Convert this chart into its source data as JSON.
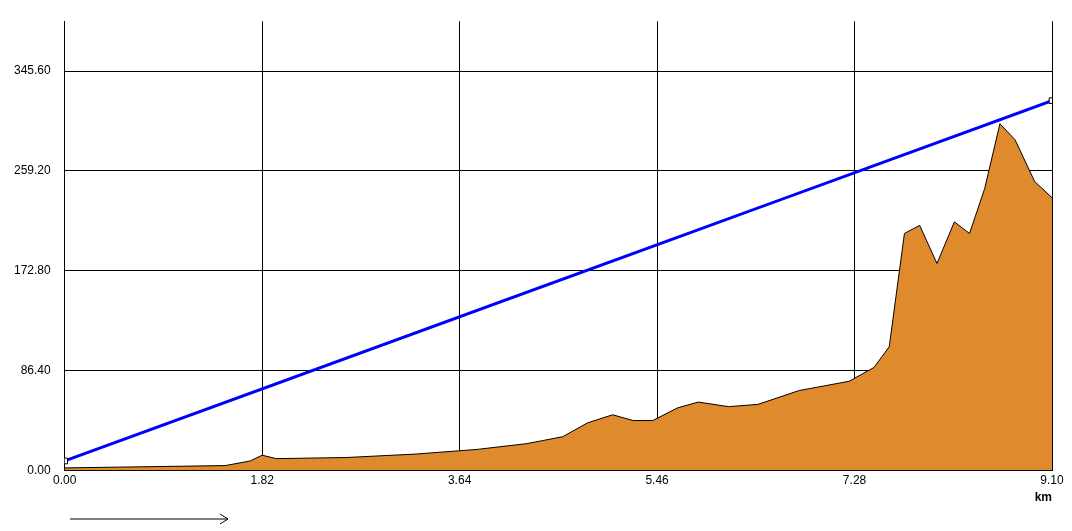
{
  "chart_data": {
    "type": "area",
    "xlabel": "km",
    "xlim": [
      0,
      9.1
    ],
    "xticks": [
      {
        "value": 0,
        "label": "0.00"
      },
      {
        "value": 1.82,
        "label": "1.82"
      },
      {
        "value": 3.64,
        "label": "3.64"
      },
      {
        "value": 5.46,
        "label": "5.46"
      },
      {
        "value": 7.28,
        "label": "7.28"
      },
      {
        "value": 9.1,
        "label": "9.10"
      }
    ],
    "ylim": [
      0,
      388.8
    ],
    "yticks": [
      {
        "value": 0,
        "label": "0.00"
      },
      {
        "value": 86.4,
        "label": "86.40"
      },
      {
        "value": 172.8,
        "label": "172.80"
      },
      {
        "value": 259.2,
        "label": "259.20"
      },
      {
        "value": 345.6,
        "label": "345.60"
      }
    ],
    "grid": true,
    "legend": false,
    "series": [
      {
        "color": "#e08a2e",
        "marker": "none",
        "x": [
          0,
          0.74,
          1.48,
          1.71,
          1.82,
          1.95,
          2.6,
          3.24,
          3.8,
          4.26,
          4.59,
          4.82,
          5.05,
          5.24,
          5.42,
          5.65,
          5.84,
          6.12,
          6.39,
          6.77,
          7.23,
          7.46,
          7.6,
          7.74,
          7.88,
          8.04,
          8.2,
          8.34,
          8.48,
          8.62,
          8.76,
          8.94,
          9.1
        ],
        "values": [
          2,
          3,
          4,
          8,
          13,
          10,
          11,
          14,
          18,
          23,
          29,
          41,
          48,
          43,
          43,
          54,
          59,
          55,
          57,
          69,
          77,
          89,
          107,
          205,
          212,
          179,
          215,
          205,
          244,
          300,
          286,
          250,
          236
        ]
      },
      {
        "type": "line",
        "color": "#0000ff",
        "marker": "square",
        "x": [
          0,
          9.1
        ],
        "values": [
          8,
          320
        ]
      }
    ]
  }
}
